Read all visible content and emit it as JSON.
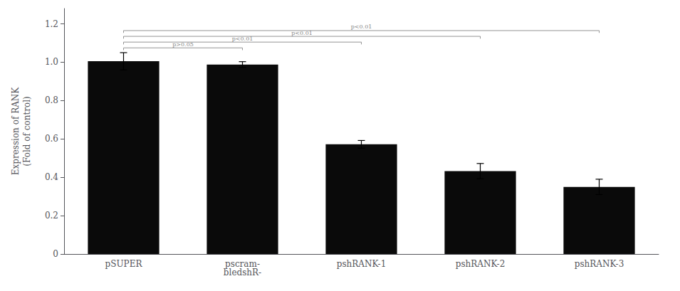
{
  "chart_data": {
    "type": "bar",
    "categories": [
      "pSUPER",
      "pscram-\nbledshR-",
      "pshRANK-1",
      "pshRANK-2",
      "pshRANK-3"
    ],
    "values": [
      1.005,
      0.988,
      0.572,
      0.432,
      0.35
    ],
    "errors": [
      0.045,
      0.015,
      0.02,
      0.04,
      0.04
    ],
    "color": "#0a0a0a",
    "ylabel": "Expression of RANK\n(Fold of control)",
    "ylim": [
      0,
      1.28
    ],
    "yticks": [
      0,
      0.2,
      0.4,
      0.6,
      0.8,
      {
        "value": 1,
        "label": "1.0"
      },
      1.2
    ],
    "grid": false,
    "annotations": [
      {
        "text": "p>0.05",
        "from": "pSUPER",
        "to": "pscram-\nbledshR-",
        "y": 1.075,
        "color": "#888888"
      },
      {
        "text": "p<0.01",
        "from": "pSUPER",
        "to": "pshRANK-1",
        "y": 1.105,
        "color": "#888888"
      },
      {
        "text": "p<0.01",
        "from": "pSUPER",
        "to": "pshRANK-2",
        "y": 1.135,
        "color": "#888888"
      },
      {
        "text": "p<0.01",
        "from": "pSUPER",
        "to": "pshRANK-3",
        "y": 1.165,
        "color": "#888888"
      }
    ]
  }
}
